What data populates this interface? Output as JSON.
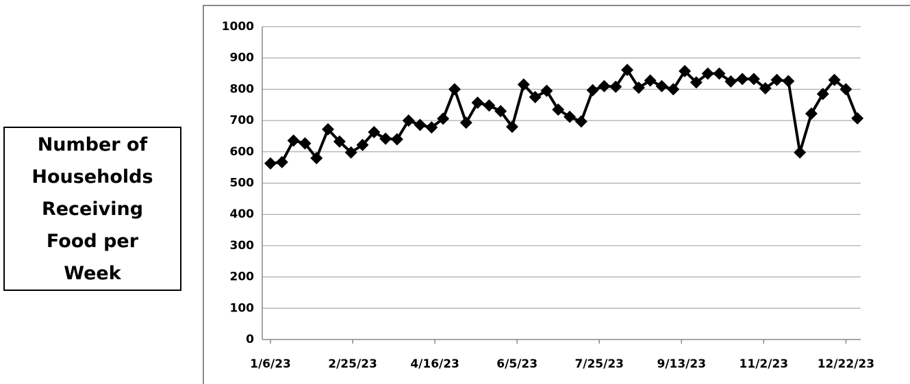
{
  "chart_data": {
    "type": "line",
    "ylabel": "Number of Households Receiving Food per Week",
    "x": [
      "1/6/23",
      "1/13/23",
      "1/20/23",
      "1/27/23",
      "2/3/23",
      "2/10/23",
      "2/17/23",
      "2/24/23",
      "3/3/23",
      "3/10/23",
      "3/17/23",
      "3/24/23",
      "3/31/23",
      "4/7/23",
      "4/14/23",
      "4/21/23",
      "4/28/23",
      "5/5/23",
      "5/12/23",
      "5/19/23",
      "5/26/23",
      "6/2/23",
      "6/9/23",
      "6/16/23",
      "6/23/23",
      "6/30/23",
      "7/7/23",
      "7/14/23",
      "7/21/23",
      "7/28/23",
      "8/4/23",
      "8/11/23",
      "8/18/23",
      "8/25/23",
      "9/1/23",
      "9/8/23",
      "9/15/23",
      "9/22/23",
      "9/29/23",
      "10/6/23",
      "10/13/23",
      "10/20/23",
      "10/27/23",
      "11/3/23",
      "11/10/23",
      "11/17/23",
      "11/24/23",
      "12/1/23",
      "12/8/23",
      "12/15/23",
      "12/22/23",
      "12/29/23"
    ],
    "series": [
      {
        "name": "Households",
        "color": "#000000",
        "values": [
          563,
          567,
          636,
          627,
          580,
          672,
          633,
          598,
          622,
          663,
          642,
          640,
          700,
          686,
          678,
          706,
          800,
          693,
          757,
          748,
          730,
          680,
          815,
          775,
          795,
          735,
          712,
          697,
          797,
          810,
          808,
          862,
          805,
          828,
          810,
          800,
          858,
          822,
          850,
          850,
          825,
          833,
          833,
          803,
          830,
          826,
          598,
          722,
          785,
          830,
          800,
          707
        ]
      }
    ],
    "xlim": [
      "1/1/23",
      "12/31/23"
    ],
    "xticks": [
      "1/6/23",
      "2/25/23",
      "4/16/23",
      "6/5/23",
      "7/25/23",
      "9/13/23",
      "11/2/23",
      "12/22/23"
    ],
    "ylim": [
      0,
      1000
    ],
    "yticks": [
      0,
      100,
      200,
      300,
      400,
      500,
      600,
      700,
      800,
      900,
      1000
    ],
    "grid": true
  }
}
